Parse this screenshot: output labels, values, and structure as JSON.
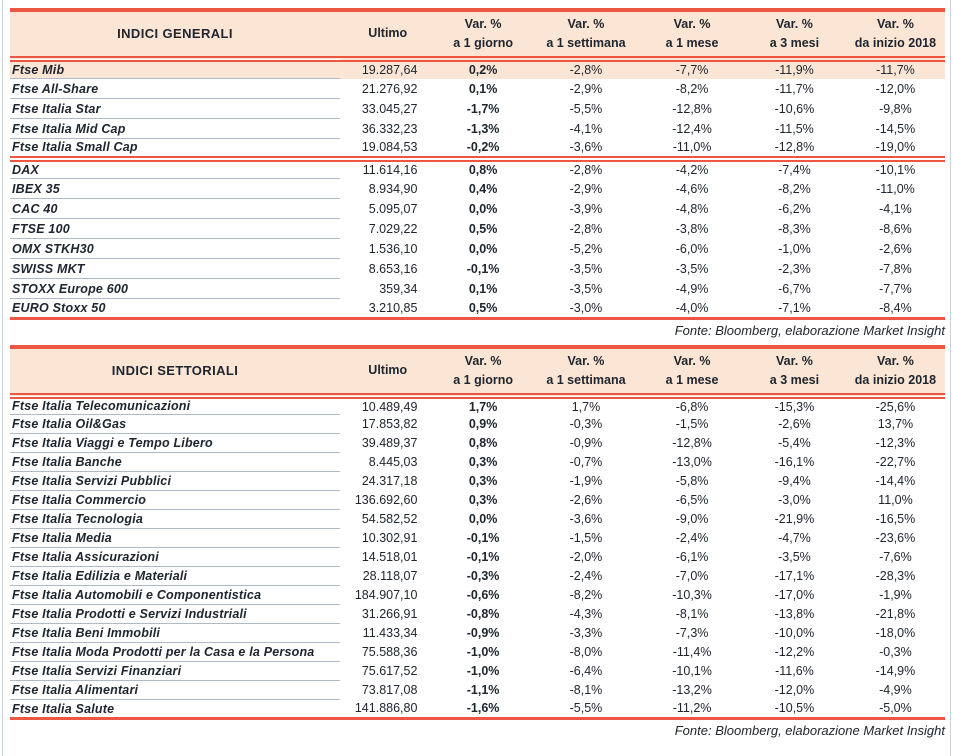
{
  "colors": {
    "accent_line": "#ED5742",
    "header_bg": "#FBE5D5",
    "text": "#20262F",
    "row_separator": "#AFBAC6",
    "page_edge": "#C9D4E1"
  },
  "tables": [
    {
      "title": "INDICI GENERALI",
      "source_note": "Fonte: Bloomberg, elaborazione Market Insight",
      "columns": [
        {
          "line1": "Ultimo",
          "line2": ""
        },
        {
          "line1": "Var. %",
          "line2": "a 1 giorno"
        },
        {
          "line1": "Var. %",
          "line2": "a 1 settimana"
        },
        {
          "line1": "Var. %",
          "line2": "a 1 mese"
        },
        {
          "line1": "Var. %",
          "line2": "a 3 mesi"
        },
        {
          "line1": "Var. %",
          "line2": "da inizio 2018"
        }
      ],
      "groups": [
        {
          "rows": [
            {
              "label": "Ftse Mib",
              "highlight": true,
              "values": [
                "19.287,64",
                "0,2%",
                "-2,8%",
                "-7,7%",
                "-11,9%",
                "-11,7%"
              ]
            },
            {
              "label": "Ftse All-Share",
              "highlight": false,
              "values": [
                "21.276,92",
                "0,1%",
                "-2,9%",
                "-8,2%",
                "-11,7%",
                "-12,0%"
              ]
            },
            {
              "label": "Ftse Italia Star",
              "highlight": false,
              "values": [
                "33.045,27",
                "-1,7%",
                "-5,5%",
                "-12,8%",
                "-10,6%",
                "-9,8%"
              ]
            },
            {
              "label": "Ftse Italia Mid Cap",
              "highlight": false,
              "values": [
                "36.332,23",
                "-1,3%",
                "-4,1%",
                "-12,4%",
                "-11,5%",
                "-14,5%"
              ]
            },
            {
              "label": "Ftse Italia Small Cap",
              "highlight": false,
              "values": [
                "19.084,53",
                "-0,2%",
                "-3,6%",
                "-11,0%",
                "-12,8%",
                "-19,0%"
              ]
            }
          ]
        },
        {
          "rows": [
            {
              "label": "DAX",
              "highlight": false,
              "values": [
                "11.614,16",
                "0,8%",
                "-2,8%",
                "-4,2%",
                "-7,4%",
                "-10,1%"
              ]
            },
            {
              "label": "IBEX 35",
              "highlight": false,
              "values": [
                "8.934,90",
                "0,4%",
                "-2,9%",
                "-4,6%",
                "-8,2%",
                "-11,0%"
              ]
            },
            {
              "label": "CAC 40",
              "highlight": false,
              "values": [
                "5.095,07",
                "0,0%",
                "-3,9%",
                "-4,8%",
                "-6,2%",
                "-4,1%"
              ]
            },
            {
              "label": "FTSE 100",
              "highlight": false,
              "values": [
                "7.029,22",
                "0,5%",
                "-2,8%",
                "-3,8%",
                "-8,3%",
                "-8,6%"
              ]
            },
            {
              "label": "OMX STKH30",
              "highlight": false,
              "values": [
                "1.536,10",
                "0,0%",
                "-5,2%",
                "-6,0%",
                "-1,0%",
                "-2,6%"
              ]
            },
            {
              "label": "SWISS MKT",
              "highlight": false,
              "values": [
                "8.653,16",
                "-0,1%",
                "-3,5%",
                "-3,5%",
                "-2,3%",
                "-7,8%"
              ]
            },
            {
              "label": "STOXX Europe 600",
              "highlight": false,
              "values": [
                "359,34",
                "0,1%",
                "-3,5%",
                "-4,9%",
                "-6,7%",
                "-7,7%"
              ]
            },
            {
              "label": "EURO Stoxx 50",
              "highlight": false,
              "values": [
                "3.210,85",
                "0,5%",
                "-3,0%",
                "-4,0%",
                "-7,1%",
                "-8,4%"
              ]
            }
          ]
        }
      ]
    },
    {
      "title": "INDICI SETTORIALI",
      "source_note": "Fonte: Bloomberg, elaborazione Market Insight",
      "columns": [
        {
          "line1": "Ultimo",
          "line2": ""
        },
        {
          "line1": "Var. %",
          "line2": "a 1 giorno"
        },
        {
          "line1": "Var. %",
          "line2": "a 1 settimana"
        },
        {
          "line1": "Var. %",
          "line2": "a 1 mese"
        },
        {
          "line1": "Var. %",
          "line2": "a 3 mesi"
        },
        {
          "line1": "Var. %",
          "line2": "da inizio 2018"
        }
      ],
      "groups": [
        {
          "rows": [
            {
              "label": "Ftse Italia Telecomunicazioni",
              "highlight": false,
              "values": [
                "10.489,49",
                "1,7%",
                "1,7%",
                "-6,8%",
                "-15,3%",
                "-25,6%"
              ]
            },
            {
              "label": "Ftse Italia Oil&Gas",
              "highlight": false,
              "values": [
                "17.853,82",
                "0,9%",
                "-0,3%",
                "-1,5%",
                "-2,6%",
                "13,7%"
              ]
            },
            {
              "label": "Ftse Italia Viaggi e Tempo Libero",
              "highlight": false,
              "values": [
                "39.489,37",
                "0,8%",
                "-0,9%",
                "-12,8%",
                "-5,4%",
                "-12,3%"
              ]
            },
            {
              "label": "Ftse Italia Banche",
              "highlight": false,
              "values": [
                "8.445,03",
                "0,3%",
                "-0,7%",
                "-13,0%",
                "-16,1%",
                "-22,7%"
              ]
            },
            {
              "label": "Ftse Italia Servizi Pubblici",
              "highlight": false,
              "values": [
                "24.317,18",
                "0,3%",
                "-1,9%",
                "-5,8%",
                "-9,4%",
                "-14,4%"
              ]
            },
            {
              "label": "Ftse Italia Commercio",
              "highlight": false,
              "values": [
                "136.692,60",
                "0,3%",
                "-2,6%",
                "-6,5%",
                "-3,0%",
                "11,0%"
              ]
            },
            {
              "label": "Ftse Italia Tecnologia",
              "highlight": false,
              "values": [
                "54.582,52",
                "0,0%",
                "-3,6%",
                "-9,0%",
                "-21,9%",
                "-16,5%"
              ]
            },
            {
              "label": "Ftse Italia Media",
              "highlight": false,
              "values": [
                "10.302,91",
                "-0,1%",
                "-1,5%",
                "-2,4%",
                "-4,7%",
                "-23,6%"
              ]
            },
            {
              "label": "Ftse Italia Assicurazioni",
              "highlight": false,
              "values": [
                "14.518,01",
                "-0,1%",
                "-2,0%",
                "-6,1%",
                "-3,5%",
                "-7,6%"
              ]
            },
            {
              "label": "Ftse Italia Edilizia e Materiali",
              "highlight": false,
              "values": [
                "28.118,07",
                "-0,3%",
                "-2,4%",
                "-7,0%",
                "-17,1%",
                "-28,3%"
              ]
            },
            {
              "label": "Ftse Italia Automobili e Componentistica",
              "highlight": false,
              "values": [
                "184.907,10",
                "-0,6%",
                "-8,2%",
                "-10,3%",
                "-17,0%",
                "-1,9%"
              ]
            },
            {
              "label": "Ftse Italia Prodotti e Servizi Industriali",
              "highlight": false,
              "values": [
                "31.266,91",
                "-0,8%",
                "-4,3%",
                "-8,1%",
                "-13,8%",
                "-21,8%"
              ]
            },
            {
              "label": "Ftse Italia Beni Immobili",
              "highlight": false,
              "values": [
                "11.433,34",
                "-0,9%",
                "-3,3%",
                "-7,3%",
                "-10,0%",
                "-18,0%"
              ]
            },
            {
              "label": "Ftse Italia Moda Prodotti per la Casa e la Persona",
              "highlight": false,
              "values": [
                "75.588,36",
                "-1,0%",
                "-8,0%",
                "-11,4%",
                "-12,2%",
                "-0,3%"
              ]
            },
            {
              "label": "Ftse Italia Servizi Finanziari",
              "highlight": false,
              "values": [
                "75.617,52",
                "-1,0%",
                "-6,4%",
                "-10,1%",
                "-11,6%",
                "-14,9%"
              ]
            },
            {
              "label": "Ftse Italia Alimentari",
              "highlight": false,
              "values": [
                "73.817,08",
                "-1,1%",
                "-8,1%",
                "-13,2%",
                "-12,0%",
                "-4,9%"
              ]
            },
            {
              "label": "Ftse Italia Salute",
              "highlight": false,
              "values": [
                "141.886,80",
                "-1,6%",
                "-5,5%",
                "-11,2%",
                "-10,5%",
                "-5,0%"
              ]
            }
          ]
        }
      ]
    }
  ]
}
